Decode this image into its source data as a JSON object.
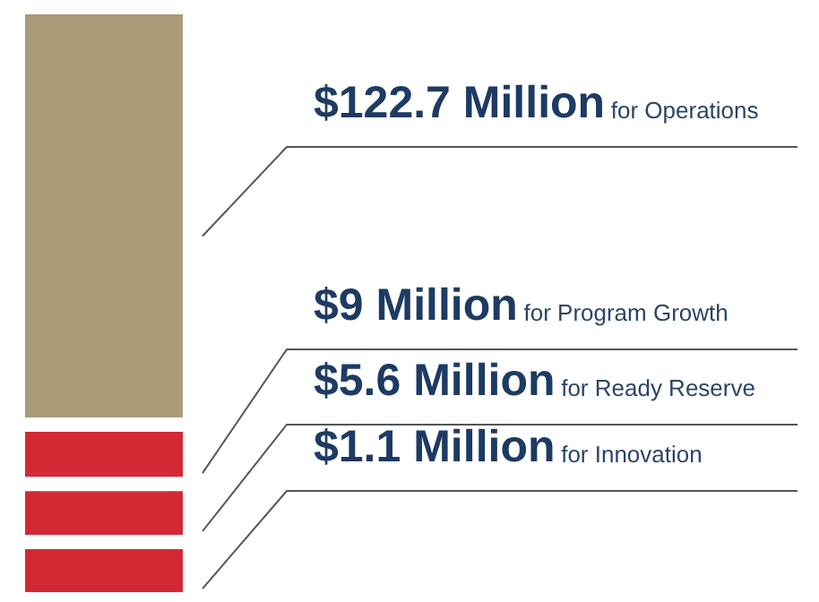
{
  "chart_data": {
    "type": "other",
    "categories": [
      "for Operations",
      "for Program Growth",
      "for Ready Reserve",
      "for Innovation"
    ],
    "values": [
      122.7,
      9,
      5.6,
      1.1
    ],
    "value_labels": [
      "$122.7 Million",
      "$9 Million",
      "$5.6 Million",
      "$1.1 Million"
    ],
    "colors": [
      "#ab9b79",
      "#d22a35",
      "#d22a35",
      "#d22a35"
    ]
  }
}
